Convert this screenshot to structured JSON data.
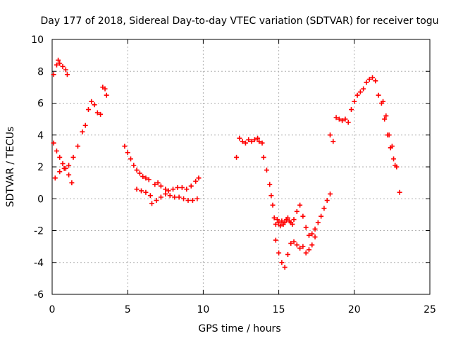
{
  "chart_data": {
    "type": "scatter",
    "title": "Day 177 of 2018, Sidereal Day-to-day VTEC variation (SDTVAR) for receiver togu",
    "xlabel": "GPS time / hours",
    "ylabel": "SDTVAR / TECUs",
    "xlim": [
      0,
      25
    ],
    "ylim": [
      -6,
      10
    ],
    "xticks": [
      0,
      5,
      10,
      15,
      20,
      25
    ],
    "yticks": [
      -6,
      -4,
      -2,
      0,
      2,
      4,
      6,
      8,
      10
    ],
    "grid": true,
    "marker": "+",
    "color": "#ff0000",
    "series": [
      {
        "name": "SDTVAR",
        "x": [
          0.1,
          0.3,
          0.4,
          0.5,
          0.7,
          0.9,
          1.0,
          0.1,
          0.3,
          0.5,
          0.7,
          0.9,
          1.1,
          1.3,
          0.2,
          0.5,
          0.8,
          1.1,
          1.4,
          1.7,
          2.0,
          2.2,
          2.4,
          2.6,
          2.8,
          3.0,
          3.2,
          3.35,
          3.5,
          3.6,
          4.8,
          5.0,
          5.2,
          5.4,
          5.6,
          5.8,
          6.0,
          6.2,
          6.4,
          5.6,
          5.9,
          6.2,
          6.5,
          6.8,
          7.0,
          7.2,
          7.5,
          7.7,
          8.0,
          8.3,
          8.6,
          8.9,
          9.2,
          9.5,
          9.7,
          6.6,
          6.9,
          7.2,
          7.5,
          7.8,
          8.1,
          8.4,
          8.7,
          9.0,
          9.3,
          9.6,
          12.2,
          12.4,
          12.6,
          12.8,
          13.0,
          13.2,
          13.4,
          13.6,
          13.7,
          13.9,
          14.0,
          14.2,
          14.4,
          14.5,
          14.6,
          14.7,
          14.8,
          14.9,
          15.0,
          15.1,
          15.2,
          15.3,
          15.4,
          15.5,
          15.6,
          15.7,
          15.8,
          15.9,
          16.0,
          16.2,
          16.4,
          16.6,
          16.8,
          17.0,
          17.2,
          17.4,
          17.6,
          17.8,
          18.0,
          18.2,
          18.4,
          14.8,
          15.0,
          15.2,
          15.4,
          15.6,
          15.8,
          16.0,
          16.2,
          16.4,
          16.6,
          16.8,
          17.0,
          17.2,
          17.4,
          18.4,
          18.6,
          18.8,
          19.0,
          19.2,
          19.4,
          19.6,
          19.8,
          20.0,
          20.2,
          20.4,
          20.6,
          20.8,
          21.0,
          21.2,
          21.4,
          21.6,
          21.8,
          22.0,
          22.2,
          22.4,
          22.6,
          22.8,
          23.0,
          21.9,
          22.1,
          22.3,
          22.5,
          22.7
        ],
        "y": [
          7.8,
          8.4,
          8.7,
          8.5,
          8.3,
          8.1,
          7.8,
          3.5,
          3.0,
          2.6,
          2.2,
          1.9,
          1.5,
          1.0,
          1.3,
          1.7,
          1.9,
          2.1,
          2.6,
          3.3,
          4.2,
          4.6,
          5.6,
          6.1,
          5.9,
          5.4,
          5.3,
          7.0,
          6.9,
          6.5,
          3.3,
          2.9,
          2.5,
          2.1,
          1.8,
          1.6,
          1.4,
          1.3,
          1.2,
          0.6,
          0.5,
          0.4,
          0.2,
          0.9,
          1.0,
          0.8,
          0.6,
          0.5,
          0.6,
          0.7,
          0.7,
          0.6,
          0.8,
          1.1,
          1.3,
          -0.3,
          -0.1,
          0.1,
          0.3,
          0.2,
          0.1,
          0.1,
          0.0,
          -0.1,
          -0.1,
          0.0,
          2.6,
          3.8,
          3.6,
          3.5,
          3.7,
          3.6,
          3.7,
          3.8,
          3.6,
          3.5,
          2.6,
          1.8,
          0.9,
          0.2,
          -0.4,
          -1.2,
          -1.6,
          -1.3,
          -1.5,
          -1.7,
          -1.4,
          -1.6,
          -1.5,
          -1.3,
          -1.2,
          -1.4,
          -1.5,
          -1.6,
          -1.3,
          -0.8,
          -0.4,
          -1.1,
          -1.8,
          -2.3,
          -2.2,
          -1.9,
          -1.5,
          -1.1,
          -0.6,
          -0.1,
          0.3,
          -2.6,
          -3.4,
          -4.0,
          -4.3,
          -3.5,
          -2.8,
          -2.7,
          -2.9,
          -3.1,
          -3.0,
          -3.4,
          -3.2,
          -2.9,
          -2.4,
          4.0,
          3.6,
          5.1,
          5.0,
          4.9,
          5.0,
          4.8,
          5.6,
          6.1,
          6.5,
          6.7,
          6.9,
          7.3,
          7.5,
          7.6,
          7.4,
          6.5,
          6.0,
          5.0,
          4.0,
          3.2,
          2.5,
          2.0,
          0.4,
          6.1,
          5.2,
          4.0,
          3.3,
          2.1
        ]
      }
    ]
  }
}
